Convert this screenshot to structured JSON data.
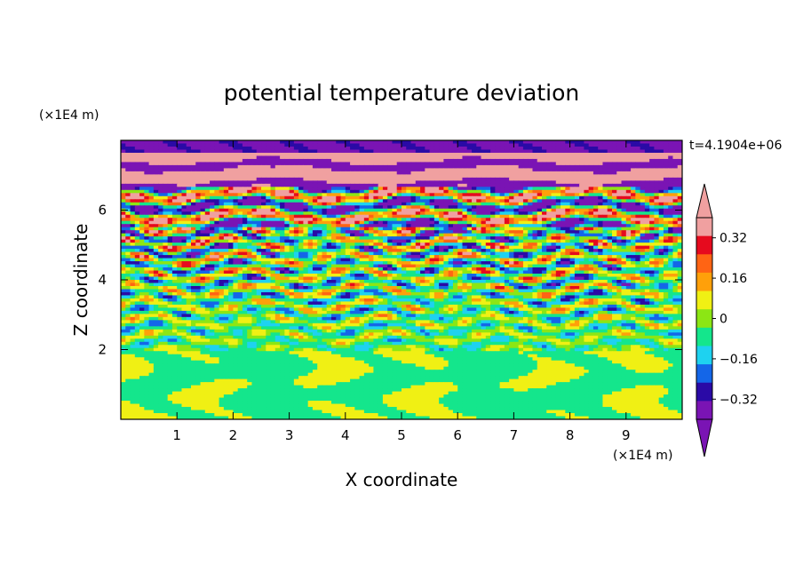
{
  "chart_data": {
    "type": "heatmap",
    "title": "potential temperature deviation",
    "xlabel": "X coordinate",
    "ylabel": "Z coordinate",
    "x_unit": "(×1E4 m)",
    "y_unit": "(×1E4 m)",
    "time_label": "t=4.1904e+06",
    "xlim": [
      0,
      10
    ],
    "ylim": [
      0,
      8
    ],
    "x_ticks": [
      "1",
      "2",
      "3",
      "4",
      "5",
      "6",
      "7",
      "8",
      "9"
    ],
    "y_ticks": [
      "2",
      "4",
      "6"
    ],
    "grid": false,
    "colorbar": {
      "levels": [
        -0.4,
        -0.32,
        -0.24,
        -0.16,
        -0.08,
        0,
        0.08,
        0.16,
        0.24,
        0.32,
        0.4
      ],
      "tick_labels": [
        "0.32",
        "0.16",
        "0",
        "−0.16",
        "−0.32"
      ],
      "colors": [
        "#7a14b4",
        "#2a0aa6",
        "#1466e8",
        "#1ed2f0",
        "#14e68c",
        "#8ce614",
        "#f0f014",
        "#ffa00a",
        "#ff6414",
        "#e60a1e",
        "#f0a0a0"
      ],
      "extend_low_color": "#7a14b4",
      "extend_high_color": "#f0a0a0"
    },
    "bands": [
      {
        "z_range": [
          7.6,
          8.0
        ],
        "dominant": "negative"
      },
      {
        "z_range": [
          6.6,
          7.6
        ],
        "dominant": "positive"
      },
      {
        "z_range": [
          5.5,
          6.6
        ],
        "dominant": "mixed"
      },
      {
        "z_range": [
          2.0,
          5.5
        ],
        "dominant": "mixed"
      },
      {
        "z_range": [
          0.0,
          2.0
        ],
        "dominant": "near-zero"
      }
    ]
  }
}
